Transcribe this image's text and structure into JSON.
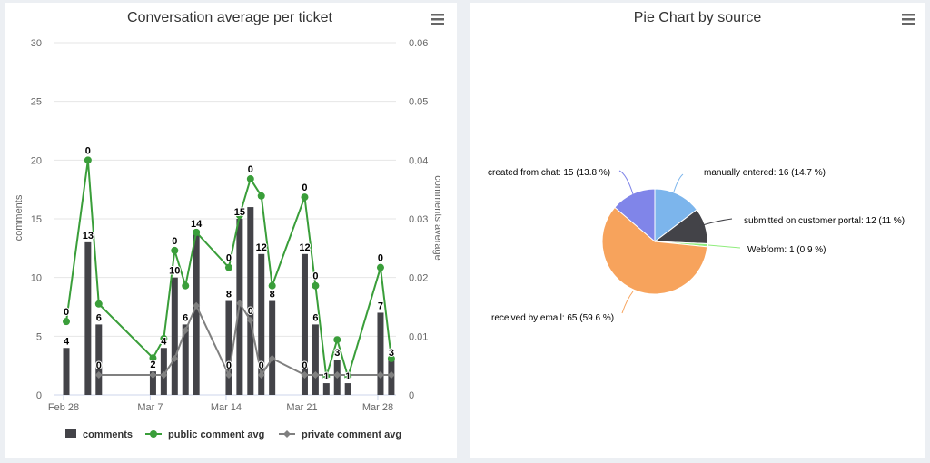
{
  "chart_data": [
    {
      "type": "bar+line",
      "title": "Conversation average per ticket",
      "ylabel": "comments",
      "y2label": "comments average",
      "ylim": [
        0,
        30
      ],
      "y2lim": [
        0,
        0.06
      ],
      "yticks": [
        "0",
        "5",
        "10",
        "15",
        "20",
        "25",
        "30"
      ],
      "y2ticks": [
        "0",
        "0.01",
        "0.02",
        "0.03",
        "0.04",
        "0.05",
        "0.06"
      ],
      "xticks": [
        "Feb 28",
        "Mar 7",
        "Mar 14",
        "Mar 21",
        "Mar 28"
      ],
      "grid": true,
      "legend_position": "bottom",
      "series": [
        {
          "name": "comments",
          "type": "bar",
          "axis": "left",
          "color": "#434348",
          "x": [
            "Feb 28",
            "Mar 1",
            "Mar 2",
            "Mar 7",
            "Mar 8",
            "Mar 9",
            "Mar 10",
            "Mar 11",
            "Mar 14",
            "Mar 15",
            "Mar 16",
            "Mar 17",
            "Mar 18",
            "Mar 21",
            "Mar 22",
            "Mar 23",
            "Mar 24",
            "Mar 25",
            "Mar 28",
            "Mar 29"
          ],
          "values": [
            4,
            13,
            6,
            2,
            4,
            10,
            6,
            14,
            8,
            15,
            16,
            12,
            8,
            12,
            6,
            1,
            3,
            1,
            7,
            3
          ],
          "labels": [
            "4",
            "13",
            "6",
            "2",
            "4",
            "10",
            "6",
            "14",
            "8",
            "15",
            "",
            "12",
            "8",
            "12",
            "6",
            "1",
            "3",
            "1",
            "7",
            "3"
          ]
        },
        {
          "name": "public comment avg",
          "type": "line",
          "axis": "right",
          "color": "#3a9e3a",
          "x": [
            "Feb 28",
            "Mar 1",
            "Mar 2",
            "Mar 7",
            "Mar 8",
            "Mar 9",
            "Mar 10",
            "Mar 11",
            "Mar 14",
            "Mar 15",
            "Mar 16",
            "Mar 17",
            "Mar 18",
            "Mar 21",
            "Mar 22",
            "Mar 23",
            "Mar 24",
            "Mar 25",
            "Mar 28",
            "Mar 29"
          ],
          "values": [
            0.0125,
            0.04,
            0.0155,
            0.0063,
            0.0096,
            0.0246,
            0.0186,
            0.0277,
            0.0217,
            0.0306,
            0.0368,
            0.0339,
            0.0186,
            0.0337,
            0.0186,
            0.0031,
            0.0094,
            0.0031,
            0.0217,
            0.0062
          ],
          "labels": [
            "0",
            "0",
            "",
            "",
            "",
            "0",
            "",
            "",
            "0",
            "",
            "0",
            "",
            "",
            "0",
            "0",
            "",
            "",
            "",
            "0",
            ""
          ]
        },
        {
          "name": "private comment avg",
          "type": "line",
          "axis": "right",
          "color": "#808080",
          "x": [
            "Mar 2",
            "Mar 7",
            "Mar 8",
            "Mar 9",
            "Mar 10",
            "Mar 11",
            "Mar 14",
            "Mar 15",
            "Mar 16",
            "Mar 17",
            "Mar 18",
            "Mar 21",
            "Mar 22",
            "Mar 23",
            "Mar 24",
            "Mar 25",
            "Mar 28",
            "Mar 29"
          ],
          "values": [
            0.0034,
            0.0034,
            0.0034,
            0.0062,
            0.011,
            0.0152,
            0.0034,
            0.0156,
            0.0127,
            0.0034,
            0.0062,
            0.0034,
            0.0034,
            0.0034,
            0.0034,
            0.0034,
            0.0034,
            0.0034
          ],
          "labels": [
            "0",
            "",
            "",
            "",
            "",
            "",
            "0",
            "",
            "0",
            "0",
            "",
            "0",
            "",
            "",
            "",
            "",
            "",
            ""
          ]
        }
      ]
    },
    {
      "type": "pie",
      "title": "Pie Chart by source",
      "slices": [
        {
          "name": "manually entered",
          "value": 16,
          "percent": "14.7 %",
          "label": "manually entered: 16 (14.7 %)",
          "color": "#7cb5ec"
        },
        {
          "name": "submitted on customer portal",
          "value": 12,
          "percent": "11 %",
          "label": "submitted on customer portal: 12 (11 %)",
          "color": "#434348"
        },
        {
          "name": "Webform",
          "value": 1,
          "percent": "0.9 %",
          "label": "Webform: 1 (0.9 %)",
          "color": "#90ed7d"
        },
        {
          "name": "received by email",
          "value": 65,
          "percent": "59.6 %",
          "label": "received by email: 65 (59.6 %)",
          "color": "#f7a35c"
        },
        {
          "name": "created from chat",
          "value": 15,
          "percent": "13.8 %",
          "label": "created from chat: 15 (13.8 %)",
          "color": "#8085e9"
        }
      ]
    }
  ],
  "menu_icon": "hamburger-menu-icon"
}
